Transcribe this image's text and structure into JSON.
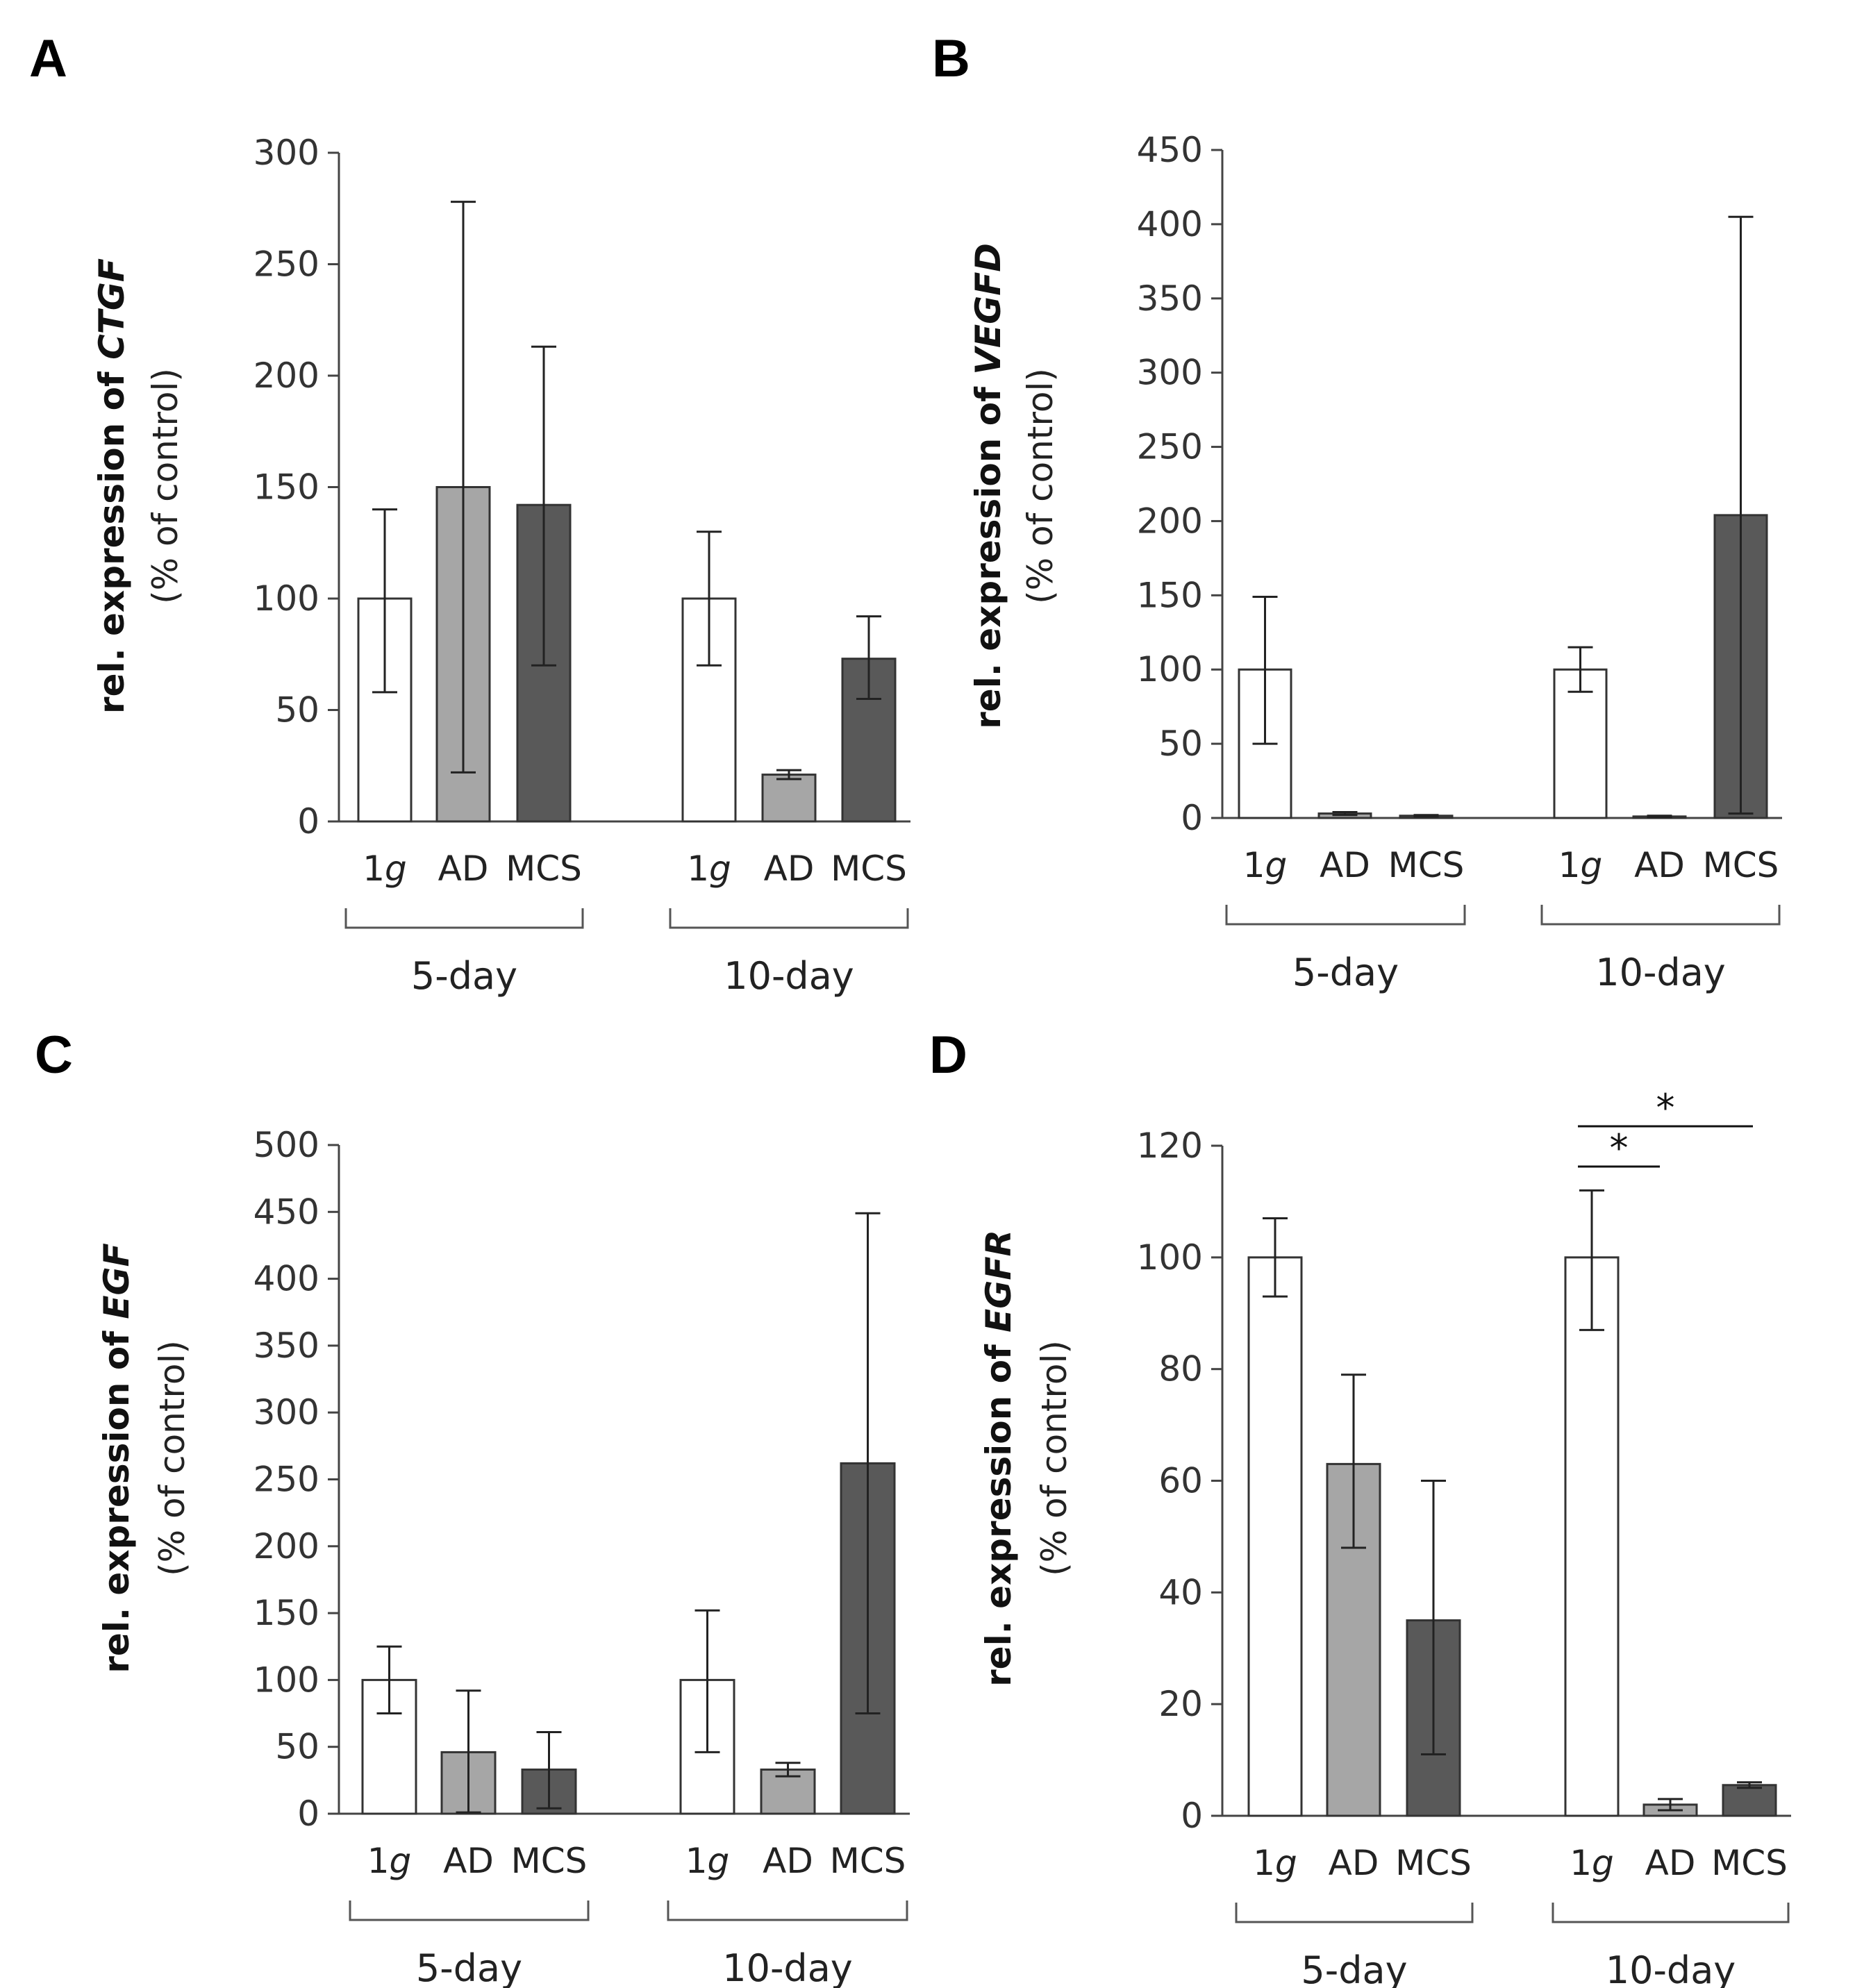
{
  "chart_data": [
    {
      "type": "bar",
      "panel": "A",
      "ylabel": "rel. expression of CTGF",
      "ylabel_prefix": "rel. expression of ",
      "ylabel_gene": "CTGF",
      "ylabel_unit": "(% of control)",
      "ylim": [
        0,
        300
      ],
      "yticks": [
        0,
        50,
        100,
        150,
        200,
        250,
        300
      ],
      "groups": [
        "5-day",
        "10-day"
      ],
      "categories": [
        "1g",
        "AD",
        "MCS"
      ],
      "colors": [
        "#ffffff",
        "#a6a6a6",
        "#595959"
      ],
      "values": [
        [
          100,
          150,
          142
        ],
        [
          100,
          21,
          73
        ]
      ],
      "errors": [
        [
          [
            58,
            140
          ],
          [
            22,
            278
          ],
          [
            70,
            213
          ]
        ],
        [
          [
            70,
            130
          ],
          [
            19,
            23
          ],
          [
            55,
            92
          ]
        ]
      ],
      "significance": []
    },
    {
      "type": "bar",
      "panel": "B",
      "ylabel": "rel. expression of VEGFD",
      "ylabel_prefix": "rel. expression of ",
      "ylabel_gene": "VEGFD",
      "ylabel_unit": "(% of control)",
      "ylim": [
        0,
        450
      ],
      "yticks": [
        0,
        50,
        100,
        150,
        200,
        250,
        300,
        350,
        400,
        450
      ],
      "groups": [
        "5-day",
        "10-day"
      ],
      "categories": [
        "1g",
        "AD",
        "MCS"
      ],
      "colors": [
        "#ffffff",
        "#a6a6a6",
        "#595959"
      ],
      "values": [
        [
          100,
          3,
          1.5
        ],
        [
          100,
          1,
          204
        ]
      ],
      "errors": [
        [
          [
            50,
            149
          ],
          [
            2,
            4
          ],
          [
            1,
            2
          ]
        ],
        [
          [
            85,
            115
          ],
          [
            0.5,
            1.5
          ],
          [
            3,
            405
          ]
        ]
      ],
      "significance": []
    },
    {
      "type": "bar",
      "panel": "C",
      "ylabel": "rel. expression of EGF",
      "ylabel_prefix": "rel. expression of ",
      "ylabel_gene": "EGF",
      "ylabel_unit": "(% of control)",
      "ylim": [
        0,
        500
      ],
      "yticks": [
        0,
        50,
        100,
        150,
        200,
        250,
        300,
        350,
        400,
        450,
        500
      ],
      "groups": [
        "5-day",
        "10-day"
      ],
      "categories": [
        "1g",
        "AD",
        "MCS"
      ],
      "colors": [
        "#ffffff",
        "#a6a6a6",
        "#595959"
      ],
      "values": [
        [
          100,
          46,
          33
        ],
        [
          100,
          33,
          262
        ]
      ],
      "errors": [
        [
          [
            75,
            125
          ],
          [
            1,
            92
          ],
          [
            4,
            61
          ]
        ],
        [
          [
            46,
            152
          ],
          [
            28,
            38
          ],
          [
            75,
            449
          ]
        ]
      ],
      "significance": []
    },
    {
      "type": "bar",
      "panel": "D",
      "ylabel": "rel. expression of EGFR",
      "ylabel_prefix": "rel. expression of ",
      "ylabel_gene": "EGFR",
      "ylabel_unit": "(% of control)",
      "ylim": [
        0,
        120
      ],
      "yticks": [
        0,
        20,
        40,
        60,
        80,
        100,
        120
      ],
      "groups": [
        "5-day",
        "10-day"
      ],
      "categories": [
        "1g",
        "AD",
        "MCS"
      ],
      "colors": [
        "#ffffff",
        "#a6a6a6",
        "#595959"
      ],
      "values": [
        [
          100,
          63,
          35
        ],
        [
          100,
          2,
          5.5
        ]
      ],
      "errors": [
        [
          [
            93,
            107
          ],
          [
            48,
            79
          ],
          [
            11,
            60
          ]
        ],
        [
          [
            87,
            112
          ],
          [
            1,
            3
          ],
          [
            5,
            6
          ]
        ]
      ],
      "significance": [
        {
          "from": [
            1,
            0
          ],
          "to": [
            1,
            1
          ],
          "label": "*"
        },
        {
          "from": [
            1,
            0
          ],
          "to": [
            1,
            2
          ],
          "label": "*"
        }
      ]
    }
  ]
}
